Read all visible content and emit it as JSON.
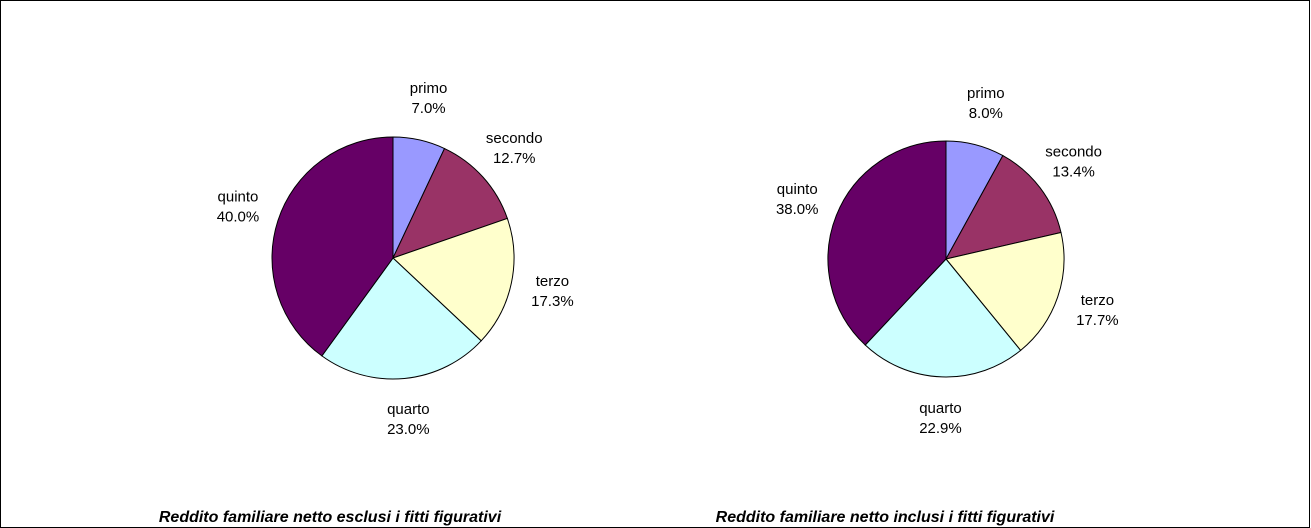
{
  "chart_data": [
    {
      "type": "pie",
      "title": "Reddito familiare netto esclusi i fitti figurativi",
      "categories": [
        "primo",
        "secondo",
        "terzo",
        "quarto",
        "quinto"
      ],
      "values": [
        7.0,
        12.7,
        17.3,
        23.0,
        40.0
      ],
      "value_labels": [
        "7.0%",
        "12.7%",
        "17.3%",
        "23.0%",
        "40.0%"
      ],
      "colors": [
        "#9999ff",
        "#993366",
        "#ffffcc",
        "#ccffff",
        "#660066"
      ]
    },
    {
      "type": "pie",
      "title": "Reddito familiare netto inclusi i fitti figurativi",
      "categories": [
        "primo",
        "secondo",
        "terzo",
        "quarto",
        "quinto"
      ],
      "values": [
        8.0,
        13.4,
        17.7,
        22.9,
        38.0
      ],
      "value_labels": [
        "8.0%",
        "13.4%",
        "17.7%",
        "22.9%",
        "38.0%"
      ],
      "colors": [
        "#9999ff",
        "#993366",
        "#ffffcc",
        "#ccffff",
        "#660066"
      ]
    }
  ]
}
